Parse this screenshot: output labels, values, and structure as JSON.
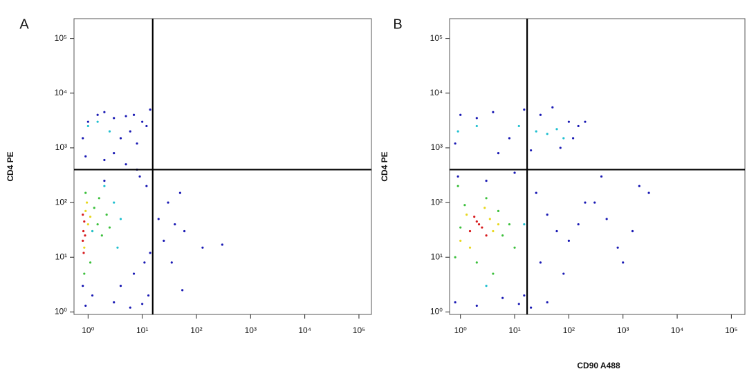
{
  "chart_data": [
    {
      "type": "scatter",
      "panel_label": "A",
      "y_label": "CD4 PE",
      "log_x": true,
      "log_y": true,
      "xlim": [
        0.55,
        170000
      ],
      "ylim": [
        0.9,
        230000
      ],
      "xticks": [
        {
          "value": 1,
          "label": "10⁰"
        },
        {
          "value": 10,
          "label": "10¹"
        },
        {
          "value": 100,
          "label": "10²"
        },
        {
          "value": 1000,
          "label": "10³"
        },
        {
          "value": 10000,
          "label": "10⁴"
        },
        {
          "value": 100000,
          "label": "10⁵"
        }
      ],
      "yticks": [
        {
          "value": 1,
          "label": "10⁰"
        },
        {
          "value": 10,
          "label": "10¹"
        },
        {
          "value": 100,
          "label": "10²"
        },
        {
          "value": 1000,
          "label": "10³"
        },
        {
          "value": 10000,
          "label": "10⁴"
        },
        {
          "value": 100000,
          "label": "10⁵"
        }
      ],
      "gates": {
        "x": 15.6,
        "y": 400
      },
      "series": [
        {
          "color": "#d7191c",
          "x": [
            0.8,
            0.82,
            0.85,
            0.8,
            0.88,
            0.83
          ],
          "values": [
            20,
            30,
            45,
            60,
            25,
            12
          ]
        },
        {
          "color": "#e8d820",
          "x": [
            0.9,
            1.0,
            0.85,
            1.1,
            0.95,
            1.2
          ],
          "values": [
            70,
            40,
            15,
            55,
            100,
            30
          ]
        },
        {
          "color": "#3cc03c",
          "x": [
            1.3,
            1.5,
            0.9,
            1.8,
            2.2,
            1.1,
            1.6,
            0.85,
            2.5
          ],
          "values": [
            80,
            40,
            150,
            25,
            60,
            8,
            120,
            5,
            35
          ]
        },
        {
          "color": "#20c0d0",
          "x": [
            3,
            2.5,
            1,
            1.2,
            4,
            1.5,
            2,
            3.5
          ],
          "values": [
            100,
            2000,
            2500,
            30,
            50,
            3000,
            200,
            15
          ]
        },
        {
          "color": "#1a1ab4",
          "x": [
            0.8,
            1,
            1.5,
            2,
            3,
            5,
            7,
            10,
            12,
            14,
            6,
            4,
            8,
            0.9,
            2,
            3,
            5,
            9,
            12,
            0.8,
            1.2,
            4,
            7,
            11,
            14,
            20,
            30,
            40,
            50,
            25,
            35,
            60,
            130,
            300,
            55,
            0.9,
            3,
            6,
            10,
            13,
            2,
            8
          ],
          "values": [
            1500,
            3000,
            4000,
            4500,
            3500,
            3800,
            4000,
            3000,
            2500,
            5000,
            2000,
            1500,
            1200,
            700,
            600,
            800,
            500,
            300,
            200,
            3,
            2,
            3,
            5,
            8,
            12,
            50,
            100,
            40,
            150,
            20,
            8,
            30,
            15,
            17,
            2.5,
            1.3,
            1.5,
            1.2,
            1.4,
            2,
            250,
            400
          ]
        }
      ]
    },
    {
      "type": "scatter",
      "panel_label": "B",
      "y_label": "CD4 PE",
      "x_label": "CD90 A488",
      "log_x": true,
      "log_y": true,
      "xlim": [
        0.63,
        178000
      ],
      "ylim": [
        0.9,
        230000
      ],
      "xticks": [
        {
          "value": 1,
          "label": "10⁰"
        },
        {
          "value": 10,
          "label": "10¹"
        },
        {
          "value": 100,
          "label": "10²"
        },
        {
          "value": 1000,
          "label": "10³"
        },
        {
          "value": 10000,
          "label": "10⁴"
        },
        {
          "value": 100000,
          "label": "10⁵"
        }
      ],
      "yticks": [
        {
          "value": 1,
          "label": "10⁰"
        },
        {
          "value": 10,
          "label": "10¹"
        },
        {
          "value": 100,
          "label": "10²"
        },
        {
          "value": 1000,
          "label": "10³"
        },
        {
          "value": 10000,
          "label": "10⁴"
        },
        {
          "value": 100000,
          "label": "10⁵"
        }
      ],
      "gates": {
        "x": 17,
        "y": 400
      },
      "series": [
        {
          "color": "#d7191c",
          "x": [
            1.5,
            2,
            2.5,
            1.8,
            3,
            2.2
          ],
          "values": [
            30,
            45,
            35,
            55,
            25,
            40
          ]
        },
        {
          "color": "#e8d820",
          "x": [
            1,
            1.3,
            3.5,
            4,
            1.5,
            2.8,
            5
          ],
          "values": [
            20,
            60,
            50,
            30,
            15,
            80,
            40
          ]
        },
        {
          "color": "#3cc03c",
          "x": [
            0.8,
            1.2,
            6,
            5,
            8,
            2,
            1,
            3,
            10,
            0.9,
            4
          ],
          "values": [
            10,
            90,
            25,
            70,
            40,
            8,
            35,
            120,
            15,
            200,
            5
          ]
        },
        {
          "color": "#20c0d0",
          "x": [
            0.9,
            2,
            12,
            25,
            40,
            60,
            80,
            15,
            3
          ],
          "values": [
            2000,
            2500,
            2500,
            2000,
            1800,
            2200,
            1500,
            40,
            3
          ]
        },
        {
          "color": "#1a1ab4",
          "x": [
            0.8,
            1,
            2,
            4,
            8,
            15,
            30,
            50,
            100,
            150,
            200,
            5,
            20,
            70,
            120,
            0.9,
            3,
            10,
            25,
            40,
            60,
            100,
            150,
            200,
            30,
            80,
            15,
            0.8,
            2,
            6,
            12,
            20,
            40,
            300,
            500,
            800,
            1500,
            2000,
            3000,
            400,
            1000
          ],
          "values": [
            1200,
            4000,
            3500,
            4500,
            1500,
            5000,
            4000,
            5500,
            3000,
            2500,
            3000,
            800,
            900,
            1000,
            1500,
            300,
            250,
            350,
            150,
            60,
            30,
            20,
            40,
            100,
            8,
            5,
            2,
            1.5,
            1.3,
            1.8,
            1.4,
            1.2,
            1.5,
            100,
            50,
            15,
            30,
            200,
            150,
            300,
            8
          ]
        }
      ]
    }
  ]
}
